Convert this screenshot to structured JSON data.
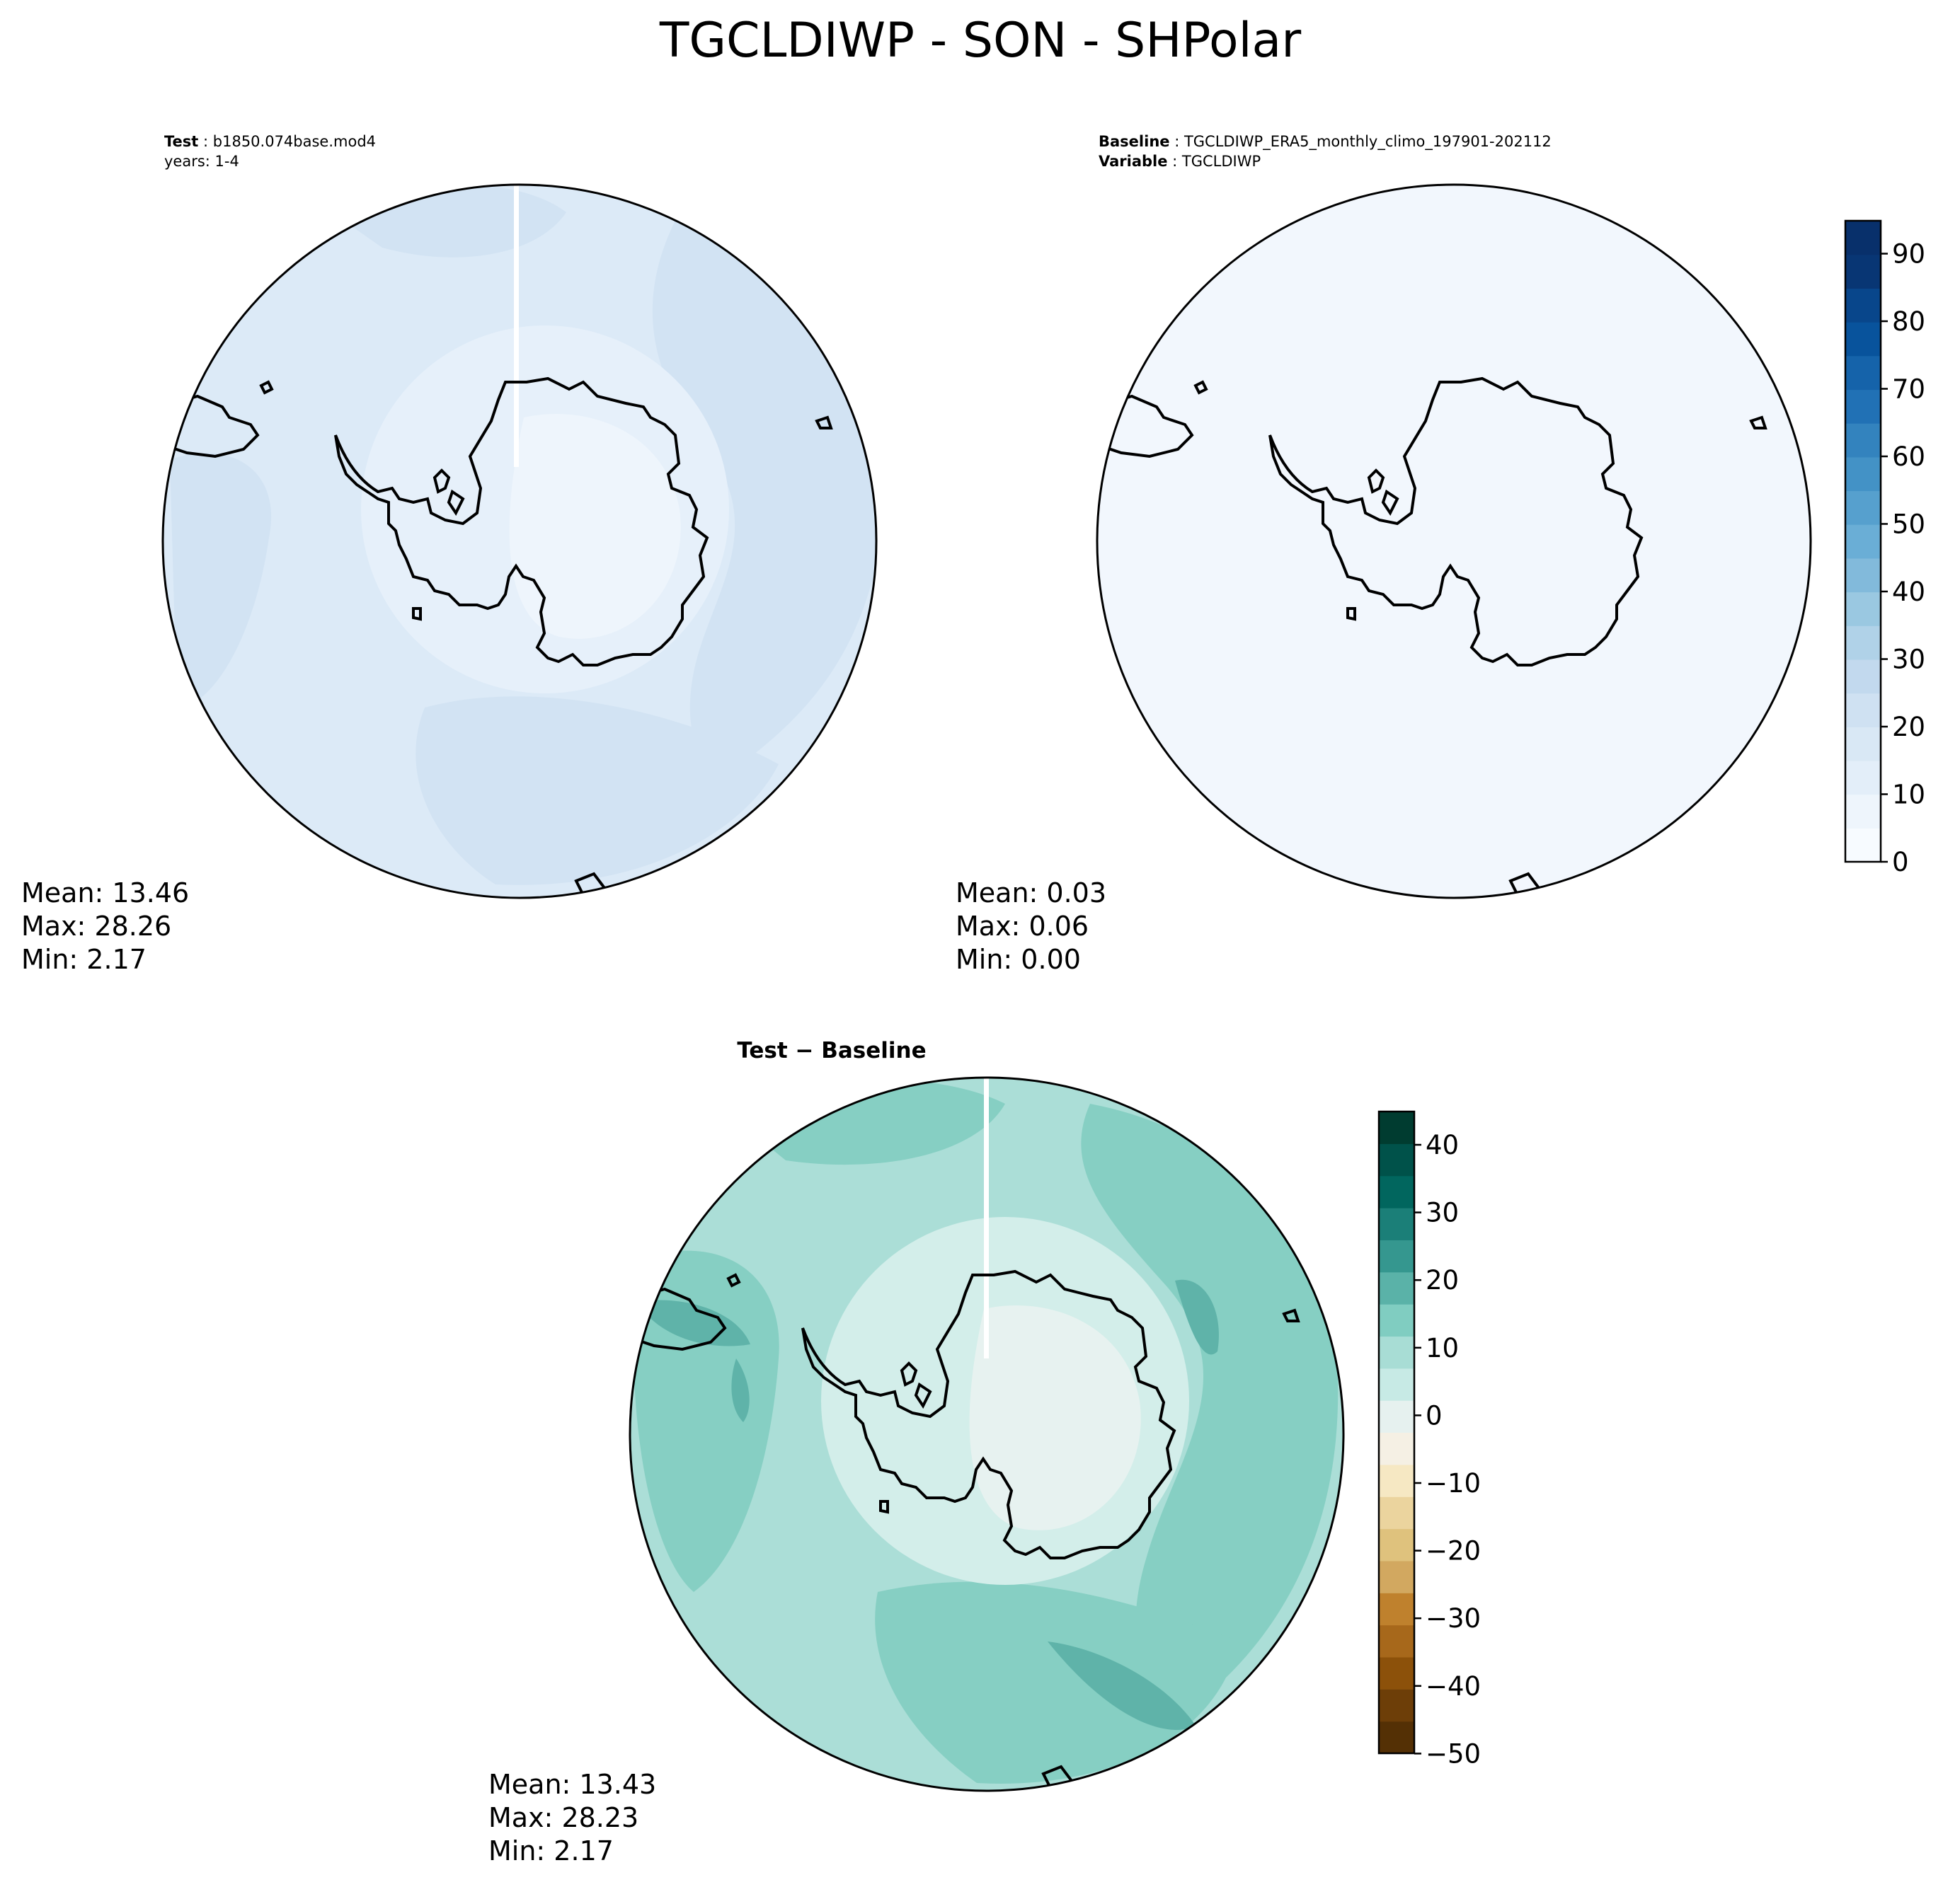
{
  "figure": {
    "title": "TGCLDIWP - SON - SHPolar"
  },
  "panels": {
    "test": {
      "label_bold": "Test",
      "label_sep": " : ",
      "label_value": "b1850.074base.mod4",
      "line2": "years: 1-4",
      "stats": {
        "mean": "Mean: 13.46",
        "max": "Max: 28.26",
        "min": "Min:  2.17"
      }
    },
    "baseline": {
      "label_bold": "Baseline",
      "label_sep": " : ",
      "label_value": "TGCLDIWP_ERA5_monthly_climo_197901-202112",
      "line2_bold": "Variable",
      "line2_sep": " : ",
      "line2_value": "TGCLDIWP",
      "stats": {
        "mean": "Mean:  0.03",
        "max": "Max:  0.06",
        "min": "Min:  0.00"
      }
    },
    "diff": {
      "label": "Test − Baseline",
      "stats": {
        "mean": "Mean: 13.43",
        "max": "Max: 28.23",
        "min": "Min:  2.17"
      }
    }
  },
  "colorbars": {
    "blues": {
      "ticks": [
        "0",
        "10",
        "20",
        "30",
        "40",
        "50",
        "60",
        "70",
        "80",
        "90"
      ],
      "colors": [
        "#f7fbff",
        "#eef5fc",
        "#e3eef9",
        "#d9e8f5",
        "#cfe1f2",
        "#c2d9ee",
        "#b0d2e8",
        "#9ac8e1",
        "#82badb",
        "#6aaed6",
        "#56a0ce",
        "#4392c6",
        "#3383be",
        "#2171b5",
        "#1563aa",
        "#08539c",
        "#08468b",
        "#083674",
        "#08306b"
      ]
    },
    "diverging": {
      "ticks": [
        "40",
        "30",
        "20",
        "10",
        "0",
        "−10",
        "−20",
        "−30",
        "−40",
        "−50"
      ],
      "colors": [
        "#543005",
        "#6d3e08",
        "#8c510a",
        "#a7681b",
        "#bf812d",
        "#d2a860",
        "#dfc27d",
        "#ebd49e",
        "#f6e8c3",
        "#f5f0e4",
        "#e6f1ef",
        "#c7eae5",
        "#a8ddd5",
        "#80cdc1",
        "#5ab2a8",
        "#35978f",
        "#1b7f78",
        "#01665e",
        "#00524a",
        "#003c30"
      ]
    }
  },
  "map_colors": {
    "test_base": "#dceaf7",
    "test_mid": "#d2e3f3",
    "test_light": "#e6f0fa",
    "test_lightest": "#eef5fc",
    "baseline_fill": "#f2f7fd",
    "diff_base": "#abded7",
    "diff_mid": "#86cfc3",
    "diff_dark": "#5fb3a9",
    "diff_light": "#d3eeea",
    "diff_lightest": "#e7f2f0"
  }
}
